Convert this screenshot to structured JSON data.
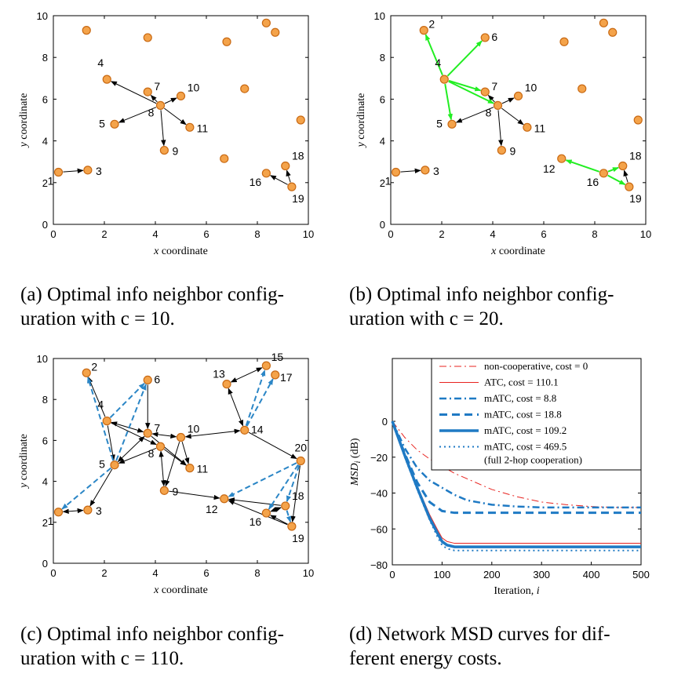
{
  "colors": {
    "node_fill": "#f4a34a",
    "node_stroke": "#c96a14",
    "edge_base": "#000000",
    "edge_green": "#22ee22",
    "edge_blue": "#2b86c6",
    "noncoop": "#e8231f",
    "atc": "#e8231f",
    "matc": "#1f7ac4"
  },
  "panels": [
    {
      "id": "a",
      "caption_lines": [
        "(a) Optimal info neighbor config-",
        "uration with c = 10."
      ],
      "xlabel": "x coordinate",
      "ylabel": "y coordinate",
      "xlim": [
        0,
        10
      ],
      "ylim": [
        0,
        10
      ],
      "xticks": [
        "0",
        "2",
        "4",
        "6",
        "8",
        "10"
      ],
      "yticks": [
        "0",
        "2",
        "4",
        "6",
        "8",
        "10"
      ]
    },
    {
      "id": "b",
      "caption_lines": [
        "(b) Optimal info neighbor config-",
        "uration with c = 20."
      ],
      "xlabel": "x coordinate",
      "ylabel": "y coordinate",
      "xlim": [
        0,
        10
      ],
      "ylim": [
        0,
        10
      ],
      "xticks": [
        "0",
        "2",
        "4",
        "6",
        "8",
        "10"
      ],
      "yticks": [
        "0",
        "2",
        "4",
        "6",
        "8",
        "10"
      ]
    },
    {
      "id": "c",
      "caption_lines": [
        "(c) Optimal info neighbor config-",
        "uration with c = 110."
      ],
      "xlabel": "x coordinate",
      "ylabel": "y coordinate",
      "xlim": [
        0,
        10
      ],
      "ylim": [
        0,
        10
      ],
      "xticks": [
        "0",
        "2",
        "4",
        "6",
        "8",
        "10"
      ],
      "yticks": [
        "0",
        "2",
        "4",
        "6",
        "8",
        "10"
      ]
    },
    {
      "id": "d",
      "caption_lines": [
        "(d) Network MSD curves for dif-",
        "ferent energy costs."
      ]
    }
  ],
  "chart_data": [
    {
      "type": "scatter",
      "panel": "a",
      "nodes": [
        {
          "id": 1,
          "x": 0.2,
          "y": 2.5,
          "label": "1"
        },
        {
          "id": 3,
          "x": 1.35,
          "y": 2.6,
          "label": "3"
        },
        {
          "id": 4,
          "x": 2.1,
          "y": 6.95,
          "label": "4"
        },
        {
          "id": 5,
          "x": 2.4,
          "y": 4.8,
          "label": "5"
        },
        {
          "id": 7,
          "x": 3.7,
          "y": 6.35,
          "label": "7"
        },
        {
          "id": 8,
          "x": 4.2,
          "y": 5.7,
          "label": "8"
        },
        {
          "id": 9,
          "x": 4.35,
          "y": 3.55,
          "label": "9"
        },
        {
          "id": 10,
          "x": 5.0,
          "y": 6.15,
          "label": "10"
        },
        {
          "id": 11,
          "x": 5.35,
          "y": 4.65,
          "label": "11"
        },
        {
          "id": 16,
          "x": 8.35,
          "y": 2.45,
          "label": "16"
        },
        {
          "id": 18,
          "x": 9.1,
          "y": 2.8,
          "label": "18"
        },
        {
          "id": 19,
          "x": 9.35,
          "y": 1.8,
          "label": "19"
        },
        {
          "id": 101,
          "x": 1.3,
          "y": 9.3,
          "label": ""
        },
        {
          "id": 102,
          "x": 3.7,
          "y": 8.95,
          "label": ""
        },
        {
          "id": 103,
          "x": 6.8,
          "y": 8.75,
          "label": ""
        },
        {
          "id": 104,
          "x": 8.35,
          "y": 9.65,
          "label": ""
        },
        {
          "id": 105,
          "x": 8.7,
          "y": 9.2,
          "label": ""
        },
        {
          "id": 106,
          "x": 7.5,
          "y": 6.5,
          "label": ""
        },
        {
          "id": 107,
          "x": 9.7,
          "y": 5.0,
          "label": ""
        },
        {
          "id": 108,
          "x": 6.7,
          "y": 3.15,
          "label": ""
        }
      ],
      "edges": [
        {
          "from": 1,
          "to": 3,
          "style": "base"
        },
        {
          "from": 8,
          "to": 4,
          "style": "base"
        },
        {
          "from": 8,
          "to": 5,
          "style": "base"
        },
        {
          "from": 8,
          "to": 7,
          "style": "base"
        },
        {
          "from": 8,
          "to": 9,
          "style": "base"
        },
        {
          "from": 8,
          "to": 10,
          "style": "base"
        },
        {
          "from": 8,
          "to": 11,
          "style": "base"
        },
        {
          "from": 19,
          "to": 16,
          "style": "base"
        },
        {
          "from": 19,
          "to": 18,
          "style": "base"
        }
      ]
    },
    {
      "type": "scatter",
      "panel": "b",
      "nodes": [
        {
          "id": 1,
          "x": 0.2,
          "y": 2.5,
          "label": "1"
        },
        {
          "id": 2,
          "x": 1.3,
          "y": 9.3,
          "label": "2"
        },
        {
          "id": 3,
          "x": 1.35,
          "y": 2.6,
          "label": "3"
        },
        {
          "id": 4,
          "x": 2.1,
          "y": 6.95,
          "label": "4"
        },
        {
          "id": 5,
          "x": 2.4,
          "y": 4.8,
          "label": "5"
        },
        {
          "id": 6,
          "x": 3.7,
          "y": 8.95,
          "label": "6"
        },
        {
          "id": 7,
          "x": 3.7,
          "y": 6.35,
          "label": "7"
        },
        {
          "id": 8,
          "x": 4.2,
          "y": 5.7,
          "label": "8"
        },
        {
          "id": 9,
          "x": 4.35,
          "y": 3.55,
          "label": "9"
        },
        {
          "id": 10,
          "x": 5.0,
          "y": 6.15,
          "label": "10"
        },
        {
          "id": 11,
          "x": 5.35,
          "y": 4.65,
          "label": "11"
        },
        {
          "id": 12,
          "x": 6.7,
          "y": 3.15,
          "label": "12"
        },
        {
          "id": 16,
          "x": 8.35,
          "y": 2.45,
          "label": "16"
        },
        {
          "id": 18,
          "x": 9.1,
          "y": 2.8,
          "label": "18"
        },
        {
          "id": 19,
          "x": 9.35,
          "y": 1.8,
          "label": "19"
        },
        {
          "id": 103,
          "x": 6.8,
          "y": 8.75,
          "label": ""
        },
        {
          "id": 104,
          "x": 8.35,
          "y": 9.65,
          "label": ""
        },
        {
          "id": 105,
          "x": 8.7,
          "y": 9.2,
          "label": ""
        },
        {
          "id": 106,
          "x": 7.5,
          "y": 6.5,
          "label": ""
        },
        {
          "id": 107,
          "x": 9.7,
          "y": 5.0,
          "label": ""
        }
      ],
      "edges": [
        {
          "from": 1,
          "to": 3,
          "style": "base"
        },
        {
          "from": 8,
          "to": 5,
          "style": "base"
        },
        {
          "from": 8,
          "to": 7,
          "style": "base"
        },
        {
          "from": 8,
          "to": 9,
          "style": "base"
        },
        {
          "from": 8,
          "to": 10,
          "style": "base"
        },
        {
          "from": 8,
          "to": 11,
          "style": "base"
        },
        {
          "from": 19,
          "to": 18,
          "style": "base"
        },
        {
          "from": 4,
          "to": 2,
          "style": "green"
        },
        {
          "from": 4,
          "to": 6,
          "style": "green"
        },
        {
          "from": 4,
          "to": 5,
          "style": "green"
        },
        {
          "from": 4,
          "to": 7,
          "style": "green"
        },
        {
          "from": 4,
          "to": 8,
          "style": "green"
        },
        {
          "from": 16,
          "to": 12,
          "style": "green"
        },
        {
          "from": 16,
          "to": 18,
          "style": "green"
        },
        {
          "from": 16,
          "to": 19,
          "style": "green"
        }
      ]
    },
    {
      "type": "scatter",
      "panel": "c",
      "nodes": [
        {
          "id": 1,
          "x": 0.2,
          "y": 2.5,
          "label": "1"
        },
        {
          "id": 2,
          "x": 1.3,
          "y": 9.3,
          "label": "2"
        },
        {
          "id": 3,
          "x": 1.35,
          "y": 2.6,
          "label": "3"
        },
        {
          "id": 4,
          "x": 2.1,
          "y": 6.95,
          "label": "4"
        },
        {
          "id": 5,
          "x": 2.4,
          "y": 4.8,
          "label": "5"
        },
        {
          "id": 6,
          "x": 3.7,
          "y": 8.95,
          "label": "6"
        },
        {
          "id": 7,
          "x": 3.7,
          "y": 6.35,
          "label": "7"
        },
        {
          "id": 8,
          "x": 4.2,
          "y": 5.7,
          "label": "8"
        },
        {
          "id": 9,
          "x": 4.35,
          "y": 3.55,
          "label": "9"
        },
        {
          "id": 10,
          "x": 5.0,
          "y": 6.15,
          "label": "10"
        },
        {
          "id": 11,
          "x": 5.35,
          "y": 4.65,
          "label": "11"
        },
        {
          "id": 12,
          "x": 6.7,
          "y": 3.15,
          "label": "12"
        },
        {
          "id": 13,
          "x": 6.8,
          "y": 8.75,
          "label": "13"
        },
        {
          "id": 14,
          "x": 7.5,
          "y": 6.5,
          "label": "14"
        },
        {
          "id": 15,
          "x": 8.35,
          "y": 9.65,
          "label": "15"
        },
        {
          "id": 16,
          "x": 8.35,
          "y": 2.45,
          "label": "16"
        },
        {
          "id": 17,
          "x": 8.7,
          "y": 9.2,
          "label": "17"
        },
        {
          "id": 18,
          "x": 9.1,
          "y": 2.8,
          "label": "18"
        },
        {
          "id": 19,
          "x": 9.35,
          "y": 1.8,
          "label": "19"
        },
        {
          "id": 20,
          "x": 9.7,
          "y": 5.0,
          "label": "20"
        }
      ],
      "edges": [
        {
          "from": 1,
          "to": 3,
          "style": "base",
          "both": true
        },
        {
          "from": 5,
          "to": 3,
          "style": "base"
        },
        {
          "from": 4,
          "to": 2,
          "style": "base"
        },
        {
          "from": 4,
          "to": 5,
          "style": "base"
        },
        {
          "from": 4,
          "to": 7,
          "style": "base",
          "both": true
        },
        {
          "from": 4,
          "to": 8,
          "style": "base"
        },
        {
          "from": 6,
          "to": 7,
          "style": "base"
        },
        {
          "from": 5,
          "to": 7,
          "style": "base",
          "both": true
        },
        {
          "from": 8,
          "to": 5,
          "style": "base"
        },
        {
          "from": 7,
          "to": 10,
          "style": "base",
          "both": true
        },
        {
          "from": 8,
          "to": 9,
          "style": "base",
          "both": true
        },
        {
          "from": 8,
          "to": 11,
          "style": "base"
        },
        {
          "from": 7,
          "to": 11,
          "style": "base"
        },
        {
          "from": 10,
          "to": 11,
          "style": "base"
        },
        {
          "from": 10,
          "to": 9,
          "style": "base"
        },
        {
          "from": 10,
          "to": 14,
          "style": "base",
          "both": true
        },
        {
          "from": 9,
          "to": 12,
          "style": "base"
        },
        {
          "from": 13,
          "to": 14,
          "style": "base",
          "both": true
        },
        {
          "from": 13,
          "to": 15,
          "style": "base",
          "both": true
        },
        {
          "from": 14,
          "to": 20,
          "style": "base"
        },
        {
          "from": 20,
          "to": 19,
          "style": "base"
        },
        {
          "from": 18,
          "to": 12,
          "style": "base"
        },
        {
          "from": 19,
          "to": 12,
          "style": "base"
        },
        {
          "from": 16,
          "to": 18,
          "style": "base",
          "both": true
        },
        {
          "from": 19,
          "to": 16,
          "style": "base"
        },
        {
          "from": 5,
          "to": 2,
          "style": "blue"
        },
        {
          "from": 5,
          "to": 6,
          "style": "blue"
        },
        {
          "from": 5,
          "to": 1,
          "style": "blue"
        },
        {
          "from": 4,
          "to": 6,
          "style": "blue"
        },
        {
          "from": 14,
          "to": 15,
          "style": "blue"
        },
        {
          "from": 14,
          "to": 17,
          "style": "blue"
        },
        {
          "from": 20,
          "to": 12,
          "style": "blue"
        },
        {
          "from": 20,
          "to": 16,
          "style": "blue"
        },
        {
          "from": 20,
          "to": 18,
          "style": "blue"
        },
        {
          "from": 18,
          "to": 19,
          "style": "blue"
        }
      ]
    },
    {
      "type": "line",
      "panel": "d",
      "xlabel": "Iteration, i",
      "ylabel": "MSD_i (dB)",
      "xlim": [
        0,
        500
      ],
      "ylim": [
        -80,
        0
      ],
      "xticks": [
        "0",
        "100",
        "200",
        "300",
        "400",
        "500"
      ],
      "yticks": [
        "0",
        "−20",
        "−40",
        "−60",
        "−80"
      ],
      "legend_position": "top-right",
      "series": [
        {
          "name": "non-cooperative, cost = 0",
          "color": "#e8231f",
          "dash": "dashdot",
          "width": 1,
          "x": [
            0,
            25,
            50,
            75,
            100,
            125,
            150,
            200,
            250,
            300,
            350,
            400,
            450,
            500
          ],
          "y": [
            0,
            -9,
            -16,
            -21,
            -25,
            -29,
            -32,
            -38,
            -42,
            -45,
            -46.5,
            -47.5,
            -48,
            -48
          ]
        },
        {
          "name": "ATC, cost = 110.1",
          "color": "#e8231f",
          "dash": "solid",
          "width": 1,
          "x": [
            0,
            25,
            50,
            75,
            90,
            100,
            110,
            125,
            150,
            200,
            300,
            400,
            500
          ],
          "y": [
            0,
            -18,
            -36,
            -52,
            -60,
            -65,
            -67,
            -68,
            -68,
            -68,
            -68,
            -68,
            -68
          ]
        },
        {
          "name": "mATC, cost = 8.8",
          "color": "#1f7ac4",
          "dash": "dashdot",
          "width": 2.5,
          "x": [
            0,
            25,
            50,
            75,
            100,
            125,
            150,
            200,
            250,
            300,
            400,
            500
          ],
          "y": [
            0,
            -15,
            -26,
            -33,
            -37,
            -41,
            -44,
            -46.5,
            -47.5,
            -48,
            -48,
            -48
          ]
        },
        {
          "name": "mATC, cost = 18.8",
          "color": "#1f7ac4",
          "dash": "dashed",
          "width": 3,
          "x": [
            0,
            25,
            50,
            75,
            100,
            125,
            150,
            200,
            300,
            400,
            500
          ],
          "y": [
            0,
            -18,
            -34,
            -45,
            -50,
            -51,
            -51,
            -51,
            -51,
            -51,
            -51
          ]
        },
        {
          "name": "mATC, cost = 109.2",
          "color": "#1f7ac4",
          "dash": "solid",
          "width": 3.5,
          "x": [
            0,
            25,
            50,
            75,
            90,
            100,
            110,
            125,
            150,
            200,
            300,
            400,
            500
          ],
          "y": [
            0,
            -19,
            -37,
            -54,
            -62,
            -67,
            -69,
            -70,
            -70,
            -70,
            -70,
            -70,
            -70
          ]
        },
        {
          "name": "mATC, cost = 469.5",
          "name2": "(full 2-hop cooperation)",
          "color": "#1f7ac4",
          "dash": "dotted",
          "width": 2,
          "x": [
            0,
            25,
            50,
            75,
            90,
            100,
            110,
            125,
            150,
            200,
            300,
            400,
            500
          ],
          "y": [
            0,
            -20,
            -38,
            -55,
            -64,
            -69,
            -71,
            -72,
            -72,
            -72,
            -72,
            -72,
            -72
          ]
        }
      ]
    }
  ]
}
